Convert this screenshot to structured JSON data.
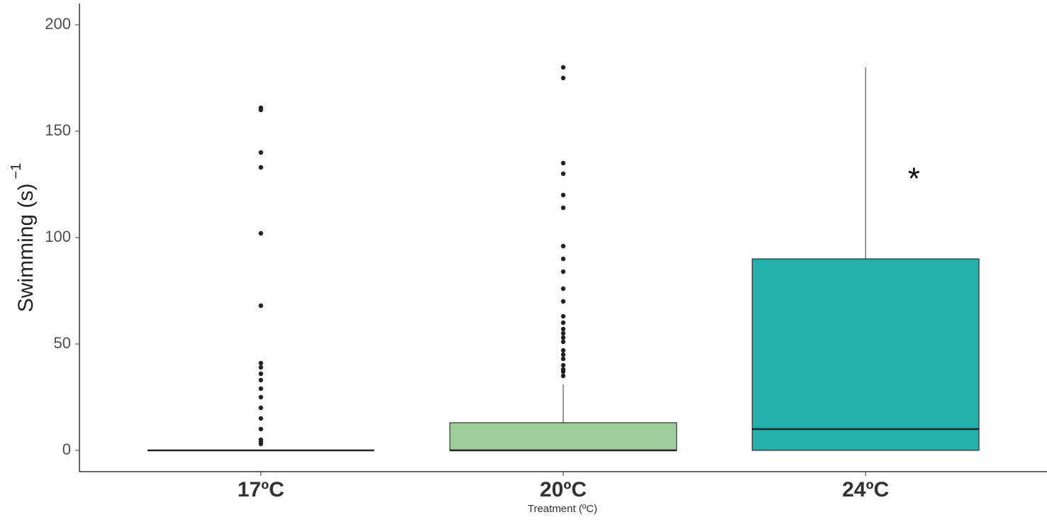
{
  "chart_data": {
    "type": "box",
    "xlabel": "Treatment (ºC)",
    "ylabel": "Swimming (s)",
    "ylabel_superscript": "−1",
    "annotation": "*",
    "categories": [
      "17ºC",
      "20ºC",
      "24ºC"
    ],
    "boxes": [
      {
        "min": 0,
        "q1": 0,
        "median": 0,
        "q3": 0,
        "max": 0,
        "color": "#ffffff",
        "outliers": [
          161,
          160,
          140,
          133,
          102,
          68,
          41,
          39,
          36,
          33,
          29,
          25,
          20,
          15,
          10,
          5,
          4,
          3
        ]
      },
      {
        "min": 0,
        "q1": 0,
        "median": 0,
        "q3": 13,
        "max": 31,
        "color": "#9ecd9a",
        "outliers": [
          180,
          175,
          135,
          130,
          120,
          114,
          96,
          90,
          84,
          76,
          70,
          63,
          60,
          57,
          55,
          53,
          51,
          47,
          45,
          43,
          40,
          38,
          37,
          35
        ]
      },
      {
        "min": 0,
        "q1": 0,
        "median": 10,
        "q3": 90,
        "max": 180,
        "color": "#20b0a9",
        "outliers": []
      }
    ],
    "ylim": [
      -10,
      210
    ],
    "yticks": [
      0,
      50,
      100,
      150,
      200
    ]
  }
}
